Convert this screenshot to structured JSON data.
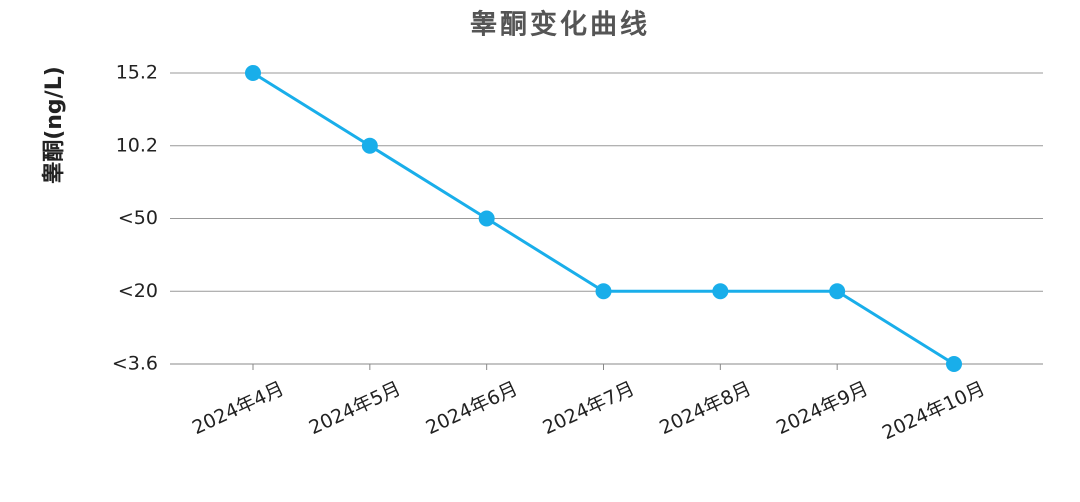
{
  "chart_data": {
    "type": "line",
    "title": "睾酮变化曲线",
    "y_label": "睾酮(ng/L)",
    "categories": [
      "2024年4月",
      "2024年5月",
      "2024年6月",
      "2024年7月",
      "2024年8月",
      "2024年9月",
      "2024年10月"
    ],
    "y_categories": [
      "15.2",
      "10.2",
      "<50",
      "<20",
      "<3.6"
    ],
    "series": [
      {
        "color": "#19aeea",
        "values": [
          "15.2",
          "10.2",
          "<50",
          "<20",
          "<20",
          "<20",
          "<3.6"
        ]
      }
    ],
    "grid": true
  }
}
